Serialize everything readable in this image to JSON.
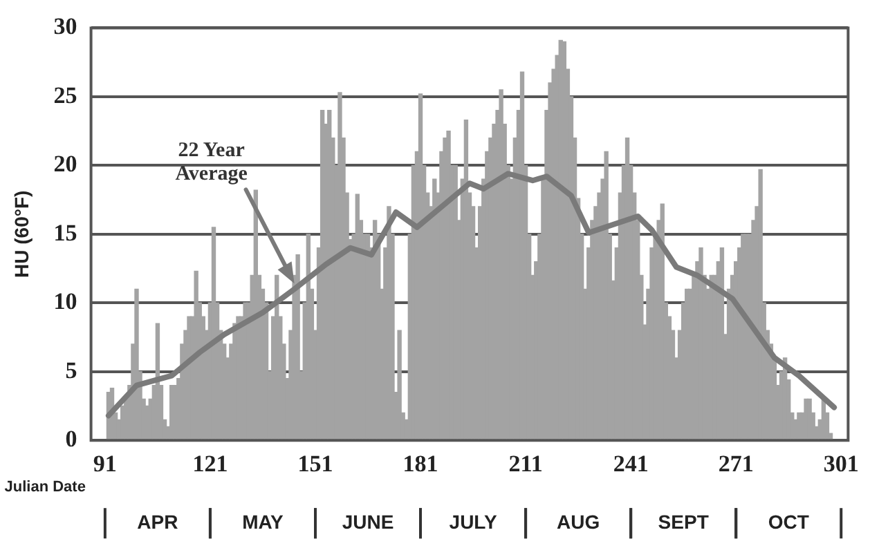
{
  "chart_data": {
    "type": "bar",
    "xlabel": "Julian Date",
    "ylabel": "HU (60°F)",
    "xlim": [
      87,
      303
    ],
    "xticks": [
      91,
      121,
      151,
      181,
      211,
      241,
      271,
      301
    ],
    "ylim": [
      0,
      30
    ],
    "yticks": [
      0,
      5,
      10,
      15,
      20,
      25,
      30
    ],
    "grid": "y",
    "legend": false,
    "annotations": [
      "APR",
      "MAY",
      "JUNE",
      "JULY",
      "AUG",
      "SEPT",
      "OCT"
    ],
    "x": [
      92,
      93,
      94,
      95,
      96,
      97,
      98,
      99,
      100,
      101,
      102,
      103,
      104,
      105,
      106,
      107,
      108,
      109,
      110,
      111,
      112,
      113,
      114,
      115,
      116,
      117,
      118,
      119,
      120,
      121,
      122,
      123,
      124,
      125,
      126,
      127,
      128,
      129,
      130,
      131,
      132,
      133,
      134,
      135,
      136,
      137,
      138,
      139,
      140,
      141,
      142,
      143,
      144,
      145,
      146,
      147,
      148,
      149,
      150,
      151,
      152,
      153,
      154,
      155,
      156,
      157,
      158,
      159,
      160,
      161,
      162,
      163,
      164,
      165,
      166,
      167,
      168,
      169,
      170,
      171,
      172,
      173,
      174,
      175,
      176,
      177,
      178,
      179,
      180,
      181,
      182,
      183,
      184,
      185,
      186,
      187,
      188,
      189,
      190,
      191,
      192,
      193,
      194,
      195,
      196,
      197,
      198,
      199,
      200,
      201,
      202,
      203,
      204,
      205,
      206,
      207,
      208,
      209,
      210,
      211,
      212,
      213,
      214,
      215,
      216,
      217,
      218,
      219,
      220,
      221,
      222,
      223,
      224,
      225,
      226,
      227,
      228,
      229,
      230,
      231,
      232,
      233,
      234,
      235,
      236,
      237,
      238,
      239,
      240,
      241,
      242,
      243,
      244,
      245,
      246,
      247,
      248,
      249,
      250,
      251,
      252,
      253,
      254,
      255,
      256,
      257,
      258,
      259,
      260,
      261,
      262,
      263,
      264,
      265,
      266,
      267,
      268,
      269,
      270,
      271,
      272,
      273,
      274,
      275,
      276,
      277,
      278,
      279,
      280,
      281,
      282,
      283,
      284,
      285,
      286,
      287,
      288,
      289,
      290,
      291,
      292,
      293,
      294,
      295,
      296,
      297,
      298
    ],
    "series": [
      {
        "color": "#a3a3a3",
        "values": [
          3.5,
          3.8,
          2,
          1.5,
          2.5,
          3,
          4,
          7,
          11,
          5,
          3,
          2.5,
          3,
          4,
          8.5,
          4,
          1.5,
          1,
          4,
          4,
          4.5,
          7,
          8,
          9,
          9,
          12.3,
          10,
          9,
          8,
          10,
          15.5,
          10,
          8,
          7,
          6,
          7,
          8.5,
          9,
          9,
          10,
          10,
          12,
          18.2,
          12,
          11,
          10,
          5,
          9,
          12,
          9,
          7,
          4.5,
          8,
          12,
          13.5,
          5,
          10,
          15,
          11,
          8,
          14,
          24,
          23,
          24,
          22,
          20,
          25.3,
          22,
          18,
          14.6,
          15,
          17.9,
          16,
          15,
          15,
          14,
          16,
          15,
          11,
          14,
          17,
          15,
          3.5,
          8,
          2,
          1.5,
          15,
          20,
          21,
          25.2,
          20,
          18,
          17,
          19,
          18,
          21,
          22,
          22.5,
          20,
          20,
          16,
          19,
          23.3,
          18,
          17,
          14,
          17,
          19,
          21,
          22,
          23,
          24,
          25.5,
          23,
          20,
          19,
          22,
          24,
          26.8,
          20,
          15,
          12,
          13,
          15,
          19,
          24,
          26,
          27,
          28,
          29.1,
          29,
          27,
          25,
          22,
          17.6,
          15,
          11,
          14,
          16,
          17,
          18,
          19,
          21,
          15,
          11.6,
          14,
          18,
          20,
          22,
          20,
          18,
          16,
          12,
          8.4,
          11,
          14,
          15,
          16,
          17.2,
          10,
          9,
          8,
          6,
          8,
          10,
          11,
          11,
          12,
          13,
          14,
          12,
          11,
          12,
          12,
          13,
          14,
          7.7,
          11,
          12,
          13,
          14,
          15,
          15,
          15,
          16,
          17,
          19.7,
          10,
          8,
          7,
          6,
          4,
          5,
          6,
          4.4,
          2,
          1.5,
          2,
          2,
          3,
          3,
          2,
          1,
          1.5,
          3,
          2,
          0.5
        ]
      },
      {
        "type": "line",
        "name": "22 Year Average",
        "color": "#7a7a7a",
        "x": [
          92,
          100,
          110,
          118,
          125,
          136,
          145,
          154,
          161,
          167,
          174,
          180,
          188,
          195,
          199,
          206,
          213,
          217,
          224,
          229,
          243,
          247,
          254,
          260,
          270,
          282,
          289,
          299
        ],
        "values": [
          1.8,
          4,
          4.7,
          6.4,
          7.7,
          9.3,
          11,
          12.8,
          14,
          13.5,
          16.6,
          15.5,
          17.2,
          18.7,
          18.3,
          19.4,
          18.9,
          19.2,
          17.8,
          15.1,
          16.3,
          15.3,
          12.6,
          12,
          10.3,
          6,
          4.7,
          2.4
        ]
      }
    ]
  }
}
